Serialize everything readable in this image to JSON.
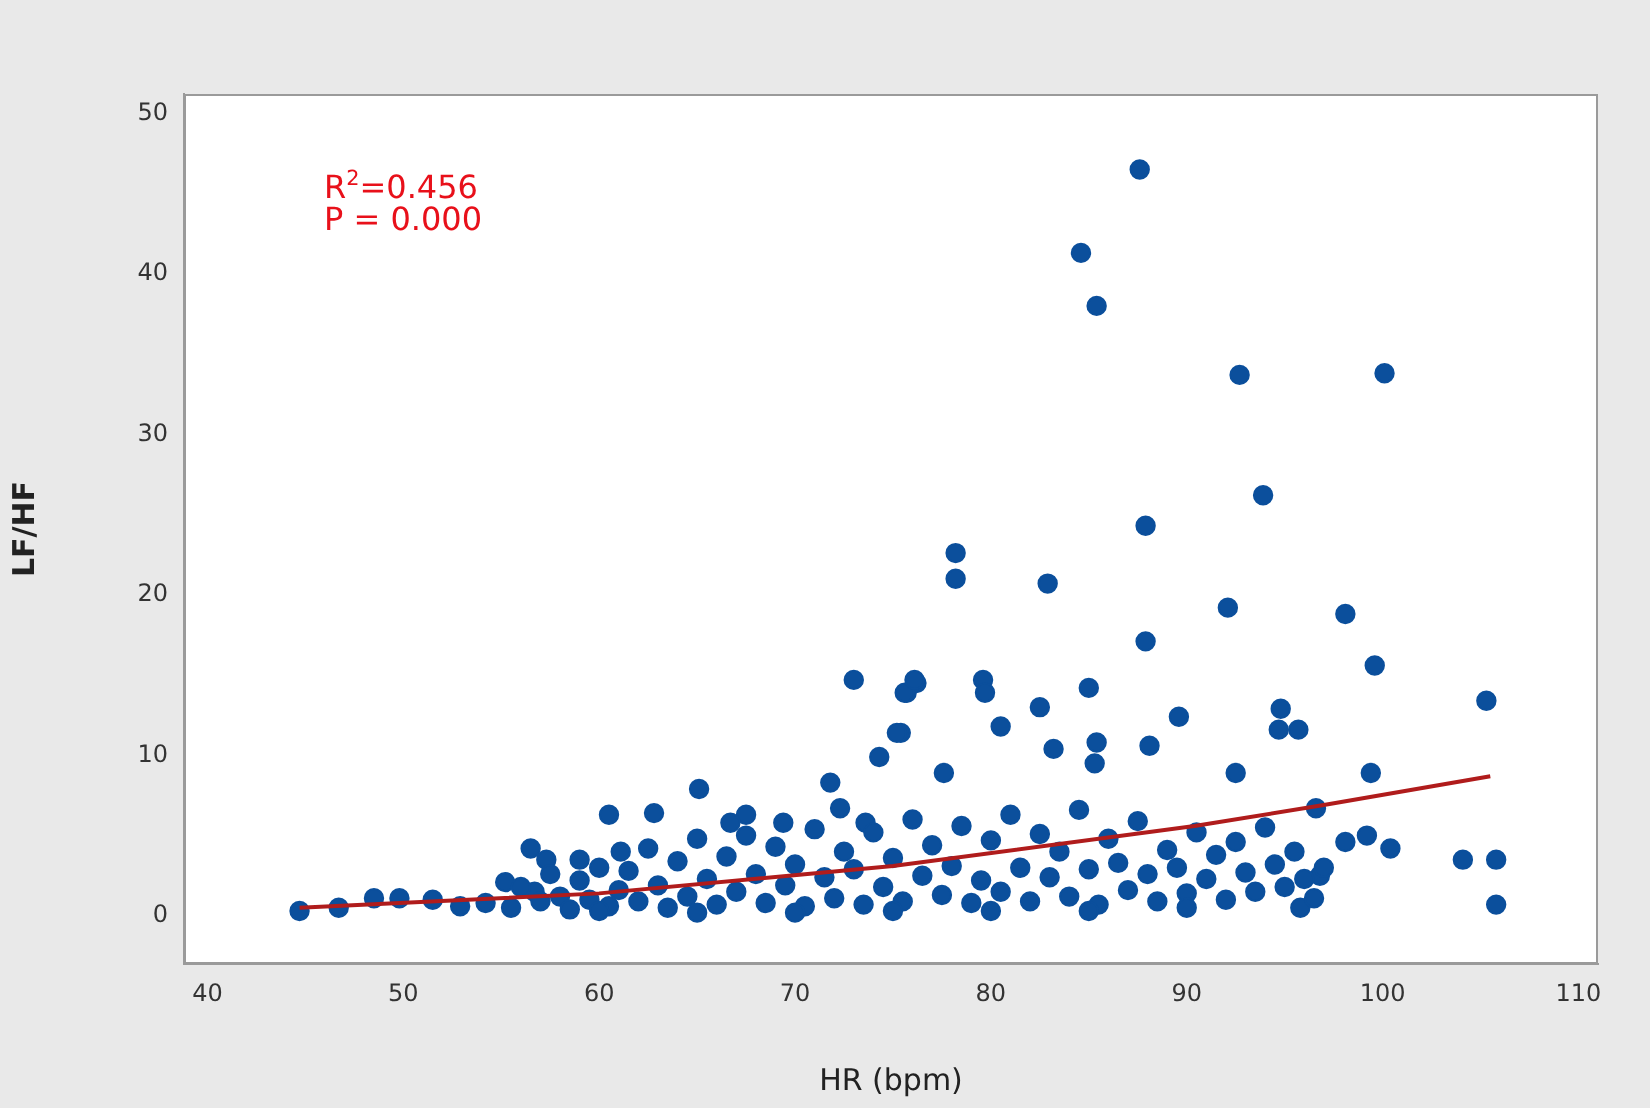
{
  "chart_data": {
    "type": "scatter",
    "xlabel": "HR (bpm)",
    "ylabel": "LF/HF",
    "xlim": [
      38.8,
      111
    ],
    "ylim": [
      -3,
      51.2
    ],
    "xticks": [
      40,
      50,
      60,
      70,
      80,
      90,
      100,
      110
    ],
    "yticks": [
      0,
      10,
      20,
      30,
      40,
      50
    ],
    "grid": false,
    "legend": false,
    "marker": "circle",
    "annotations": [
      "R$^{2}$=0.456",
      "P = 0.000"
    ],
    "series": [
      {
        "color": "#0b4f9c",
        "x": [
          87.6,
          84.6,
          85.4,
          92.7,
          100.1,
          93.9,
          87.9,
          78.2,
          78.2,
          82.9,
          87.9,
          98.1,
          92.1,
          99.6,
          105.3,
          79.6,
          79.7,
          82.5,
          85.0,
          89.6,
          94.8,
          88.1,
          94.7,
          95.7,
          83.2,
          99.4,
          92.5,
          77.6,
          75.4,
          75.7,
          76.2,
          80.5,
          85.4,
          85.3,
          98.1,
          99.2,
          100.4,
          104.1,
          105.8,
          105.8,
          95.8,
          96.8,
          96.6,
          73.0,
          75.6,
          76.1,
          75.2,
          74.3,
          71.8,
          65.1,
          62.8,
          60.5,
          67.5,
          56.5,
          57.3,
          59.0,
          61.1,
          66.7,
          69.4,
          72.3,
          73.6,
          44.7,
          46.7,
          48.5,
          49.8,
          51.5,
          52.9,
          54.2,
          55.2,
          56.7,
          55.5,
          56,
          57,
          57.5,
          58,
          58.5,
          59,
          59.5,
          60,
          60.5,
          61,
          61.5,
          62,
          62.5,
          63,
          63.5,
          64,
          64.5,
          65,
          65.5,
          66,
          66.5,
          67,
          67.5,
          68,
          68.5,
          69,
          69.5,
          70,
          70.5,
          71,
          71.5,
          72,
          72.5,
          73,
          73.5,
          74,
          74.5,
          75,
          75.5,
          76,
          76.5,
          77,
          77.5,
          78,
          78.5,
          79,
          79.5,
          80,
          80.5,
          81,
          81.5,
          82,
          82.5,
          83,
          83.5,
          84,
          84.5,
          85,
          85.5,
          86,
          86.5,
          87,
          87.5,
          88,
          88.5,
          89,
          89.5,
          90,
          90.5,
          91,
          91.5,
          92,
          92.5,
          93,
          93.5,
          94,
          94.5,
          95,
          95.5,
          96,
          96.5,
          97,
          60,
          65,
          70,
          75,
          80,
          85,
          90
        ],
        "values": [
          46.5,
          41.3,
          38.0,
          33.7,
          33.8,
          26.2,
          24.3,
          22.6,
          21.0,
          20.7,
          17.1,
          18.8,
          19.2,
          15.6,
          13.4,
          14.7,
          13.9,
          13.0,
          14.2,
          12.4,
          12.9,
          10.6,
          11.6,
          11.6,
          10.4,
          8.9,
          8.9,
          8.9,
          11.4,
          13.9,
          14.5,
          11.8,
          10.8,
          9.5,
          4.6,
          5.0,
          4.2,
          3.5,
          3.5,
          0.7,
          0.5,
          2.5,
          6.7,
          14.7,
          13.9,
          14.7,
          11.4,
          9.9,
          8.3,
          7.9,
          6.4,
          6.3,
          6.3,
          4.2,
          3.5,
          3.5,
          4.0,
          5.8,
          5.8,
          6.7,
          5.8,
          0.3,
          0.5,
          1.1,
          1.1,
          1.0,
          0.6,
          0.8,
          2.1,
          1.5,
          0.5,
          1.8,
          0.9,
          2.6,
          1.2,
          0.4,
          2.2,
          1.0,
          3.0,
          0.6,
          1.6,
          2.8,
          0.9,
          4.2,
          1.9,
          0.5,
          3.4,
          1.2,
          4.8,
          2.3,
          0.7,
          3.7,
          1.5,
          5.0,
          2.6,
          0.8,
          4.3,
          1.9,
          3.2,
          0.6,
          5.4,
          2.4,
          1.1,
          4.0,
          2.9,
          0.7,
          5.2,
          1.8,
          3.6,
          0.9,
          6.0,
          2.5,
          4.4,
          1.3,
          3.1,
          5.6,
          0.8,
          2.2,
          4.7,
          1.5,
          6.3,
          3.0,
          0.9,
          5.1,
          2.4,
          4.0,
          1.2,
          6.6,
          2.9,
          0.7,
          4.8,
          3.3,
          1.6,
          5.9,
          2.6,
          0.9,
          4.1,
          3.0,
          1.4,
          5.2,
          2.3,
          3.8,
          1.0,
          4.6,
          2.7,
          1.5,
          5.5,
          3.2,
          1.8,
          4.0,
          2.3,
          1.1,
          3.0,
          0.3,
          0.2,
          0.2,
          0.3,
          0.3,
          0.3,
          0.5
        ]
      },
      {
        "type": "line",
        "color": "#b01c1c",
        "marker": "none",
        "line_style": "solid",
        "x": [
          44.7,
          60,
          75,
          90.4,
          97,
          105.5
        ],
        "values": [
          0.5,
          1.4,
          3.1,
          5.6,
          6.9,
          8.7
        ]
      }
    ]
  }
}
